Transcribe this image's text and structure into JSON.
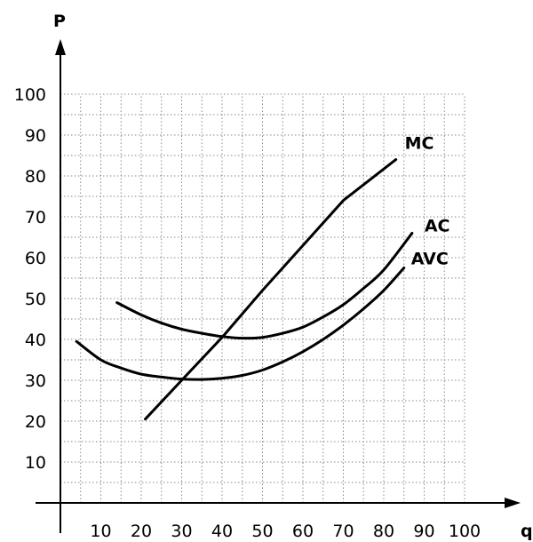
{
  "chart_data": {
    "type": "line",
    "xlabel": "q",
    "ylabel": "P",
    "xlim": [
      0,
      100
    ],
    "ylim": [
      0,
      100
    ],
    "xticks": [
      10,
      20,
      30,
      40,
      50,
      60,
      70,
      80,
      90,
      100
    ],
    "yticks": [
      10,
      20,
      30,
      40,
      50,
      60,
      70,
      80,
      90,
      100
    ],
    "grid": true,
    "series": [
      {
        "name": "MC",
        "x": [
          21,
          30,
          40,
          50,
          60,
          70,
          83
        ],
        "y": [
          20.5,
          30,
          40.5,
          52,
          63,
          74,
          84
        ]
      },
      {
        "name": "AC",
        "x": [
          14,
          20,
          25,
          30,
          35,
          40,
          45,
          50,
          55,
          60,
          65,
          70,
          75,
          80,
          87
        ],
        "y": [
          49,
          46,
          44,
          42.5,
          41.5,
          40.7,
          40.3,
          40.5,
          41.5,
          43,
          45.5,
          48.5,
          52.5,
          57,
          66
        ]
      },
      {
        "name": "AVC",
        "x": [
          4,
          10,
          15,
          20,
          25,
          30,
          35,
          40,
          45,
          50,
          55,
          60,
          65,
          70,
          75,
          80,
          85
        ],
        "y": [
          39.5,
          35,
          33,
          31.5,
          30.8,
          30.3,
          30.2,
          30.5,
          31.2,
          32.5,
          34.5,
          37,
          40,
          43.5,
          47.5,
          52,
          57.5
        ]
      }
    ]
  }
}
